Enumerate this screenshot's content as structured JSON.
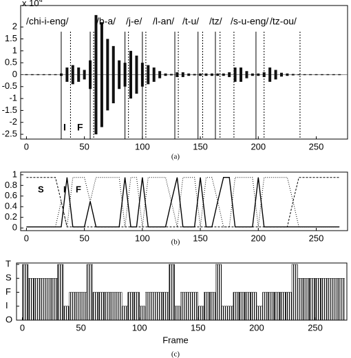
{
  "chart_data": [
    {
      "type": "waveform",
      "y_multiplier": {
        "base": "x 10",
        "exponent": "4"
      },
      "syllables": [
        "/chi-i-eng/",
        "/b-a/",
        "/j-e/",
        "/l-an/",
        "/t-u/",
        "/tz/",
        "/s-u-eng/",
        "/tz-ou/"
      ],
      "segment_labels": [
        "I",
        "F"
      ],
      "x": [
        0,
        5,
        10,
        15,
        20,
        25,
        30,
        35,
        40,
        45,
        50,
        55,
        60,
        65,
        70,
        75,
        80,
        85,
        90,
        95,
        100,
        105,
        110,
        115,
        120,
        125,
        130,
        135,
        140,
        145,
        150,
        155,
        160,
        165,
        170,
        175,
        180,
        185,
        190,
        195,
        200,
        205,
        210,
        215,
        220,
        225,
        230,
        235,
        240,
        245,
        250,
        255,
        260,
        265,
        270
      ],
      "values": [
        0.02,
        0.02,
        0.02,
        0.02,
        0.02,
        0.02,
        0.05,
        0.3,
        0.4,
        0.3,
        0.2,
        0.6,
        2.5,
        2.2,
        1.5,
        1.2,
        0.6,
        0.5,
        1.0,
        0.8,
        0.5,
        0.4,
        0.3,
        0.15,
        0.05,
        0.03,
        0.1,
        0.1,
        0.05,
        0.03,
        0.05,
        0.05,
        0.05,
        0.05,
        0.05,
        0.1,
        0.3,
        0.3,
        0.15,
        0.05,
        0.05,
        0.1,
        0.3,
        0.2,
        0.08,
        0.05,
        0.03,
        0.02,
        0.02,
        0.02,
        0.02,
        0.02,
        0.02,
        0.02,
        0.02
      ],
      "solid_boundaries": [
        30,
        55,
        85,
        100,
        128,
        148,
        163,
        198
      ],
      "dotted_boundaries": [
        38,
        58,
        88,
        103,
        131,
        152,
        167,
        179,
        205,
        236
      ],
      "xlim": [
        -5,
        277
      ],
      "ylim": [
        -2.7,
        2.9
      ],
      "xticks": [
        0,
        50,
        100,
        150,
        200,
        250
      ],
      "yticks": [
        2,
        1.5,
        1,
        0.5,
        0,
        -0.5,
        -1,
        -1.5,
        -2,
        -2.5
      ],
      "caption": "(a)"
    },
    {
      "type": "line",
      "x": [
        0,
        5,
        10,
        15,
        20,
        25,
        30,
        35,
        40,
        45,
        50,
        55,
        60,
        65,
        70,
        75,
        80,
        85,
        90,
        95,
        100,
        105,
        110,
        115,
        120,
        125,
        130,
        135,
        140,
        145,
        150,
        155,
        160,
        165,
        170,
        175,
        180,
        185,
        190,
        195,
        200,
        205,
        210,
        215,
        220,
        225,
        230,
        235,
        240,
        245,
        250,
        255,
        260,
        265,
        270
      ],
      "series": [
        {
          "name": "S",
          "style": "dashed",
          "values": [
            0.95,
            0.95,
            0.95,
            0.95,
            0.95,
            0.95,
            0.5,
            0.02,
            0.02,
            0.02,
            0.02,
            0.02,
            0.02,
            0.02,
            0.02,
            0.02,
            0.02,
            0.02,
            0.02,
            0.02,
            0.02,
            0.02,
            0.02,
            0.02,
            0.02,
            0.02,
            0.02,
            0.02,
            0.02,
            0.02,
            0.02,
            0.02,
            0.02,
            0.02,
            0.02,
            0.02,
            0.02,
            0.02,
            0.02,
            0.02,
            0.02,
            0.02,
            0.02,
            0.02,
            0.02,
            0.02,
            0.5,
            0.95,
            0.95,
            0.95,
            0.95,
            0.95,
            0.95,
            0.95,
            0.95
          ]
        },
        {
          "name": "I",
          "style": "solid",
          "values": [
            0.02,
            0.02,
            0.02,
            0.02,
            0.02,
            0.02,
            0.02,
            0.95,
            0.02,
            0.02,
            0.02,
            0.5,
            0.02,
            0.02,
            0.02,
            0.02,
            0.02,
            0.95,
            0.02,
            0.02,
            0.95,
            0.02,
            0.02,
            0.02,
            0.02,
            0.5,
            0.95,
            0.02,
            0.02,
            0.02,
            0.95,
            0.02,
            0.02,
            0.5,
            0.95,
            0.95,
            0.02,
            0.02,
            0.02,
            0.02,
            0.95,
            0.02,
            0.02,
            0.02,
            0.02,
            0.02,
            0.02,
            0.02,
            0.02,
            0.02,
            0.02,
            0.02,
            0.02,
            0.02,
            0.02
          ]
        },
        {
          "name": "F",
          "style": "dotted",
          "values": [
            0.02,
            0.02,
            0.02,
            0.02,
            0.02,
            0.02,
            0.5,
            0.02,
            0.95,
            0.95,
            0.95,
            0.5,
            0.95,
            0.95,
            0.95,
            0.95,
            0.95,
            0.02,
            0.95,
            0.95,
            0.02,
            0.95,
            0.95,
            0.95,
            0.95,
            0.5,
            0.02,
            0.95,
            0.95,
            0.95,
            0.02,
            0.95,
            0.95,
            0.5,
            0.02,
            0.02,
            0.95,
            0.95,
            0.95,
            0.95,
            0.02,
            0.95,
            0.95,
            0.95,
            0.95,
            0.95,
            0.5,
            0.02,
            0.02,
            0.02,
            0.02,
            0.02,
            0.02,
            0.02,
            0.02
          ]
        }
      ],
      "xlim": [
        -5,
        277
      ],
      "ylim": [
        -0.05,
        1.05
      ],
      "xticks": [
        0,
        50,
        100,
        150,
        200,
        250
      ],
      "yticks": [
        0,
        0.2,
        0.4,
        0.6,
        0.8,
        1
      ],
      "caption": "(b)"
    },
    {
      "type": "bar",
      "x": [
        0,
        5,
        10,
        15,
        20,
        25,
        30,
        35,
        40,
        45,
        50,
        55,
        60,
        65,
        70,
        75,
        80,
        85,
        90,
        95,
        100,
        105,
        110,
        115,
        120,
        125,
        130,
        135,
        140,
        145,
        150,
        155,
        160,
        165,
        170,
        175,
        180,
        185,
        190,
        195,
        200,
        205,
        210,
        215,
        220,
        225,
        230,
        235,
        240,
        245,
        250,
        255,
        260,
        265,
        270
      ],
      "values": [
        4,
        3,
        3,
        3,
        3,
        3,
        4,
        1,
        2,
        2,
        2,
        4,
        2,
        2,
        2,
        2,
        2,
        1,
        2,
        2,
        1,
        2,
        2,
        2,
        2,
        4,
        1,
        2,
        2,
        2,
        1,
        2,
        2,
        4,
        1,
        1,
        2,
        2,
        2,
        2,
        1,
        2,
        2,
        2,
        2,
        2,
        4,
        3,
        3,
        3,
        3,
        3,
        3,
        3,
        3
      ],
      "xlim": [
        -5,
        277
      ],
      "ylim": [
        0,
        4.1
      ],
      "xticks": [
        0,
        50,
        100,
        150,
        200,
        250
      ],
      "yticks": [
        {
          "value": 0,
          "label": "O"
        },
        {
          "value": 1,
          "label": "I"
        },
        {
          "value": 2,
          "label": "F"
        },
        {
          "value": 3,
          "label": "S"
        },
        {
          "value": 4,
          "label": "T"
        }
      ],
      "xlabel": "Frame",
      "caption": "(c)"
    }
  ]
}
